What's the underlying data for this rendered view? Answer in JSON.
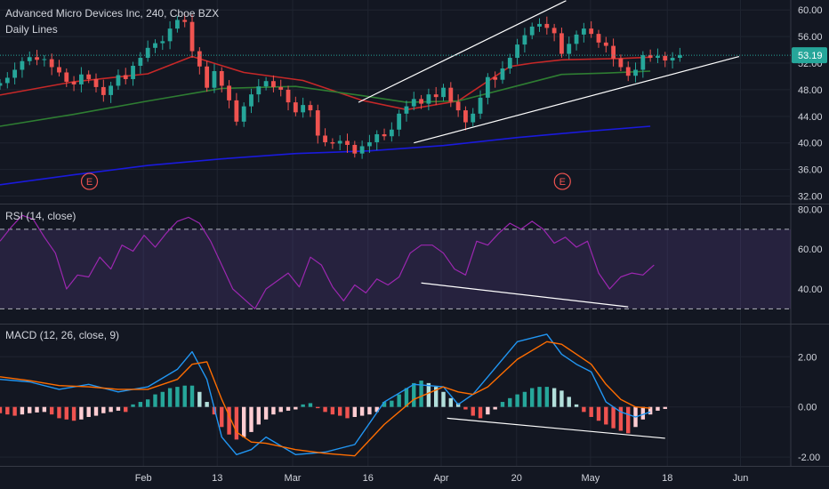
{
  "header": {
    "symbol_title": "Advanced Micro Devices Inc, 240, Cboe BZX",
    "ma_label": "Daily Lines"
  },
  "indicators": {
    "rsi_title": "RSI (14, close)",
    "macd_title": "MACD (12, 26, close, 9)"
  },
  "last_price": "53.19",
  "earnings_marker": "E",
  "colors": {
    "background": "#131722",
    "up": "#26a69a",
    "down": "#ef5350",
    "ma_red": "#c62828",
    "ma_green": "#2e7d32",
    "ma_blue": "#1a1adc",
    "rsi": "#9c27b0",
    "macd": "#2196f3",
    "signal": "#ff6d00",
    "trendline": "#ffffff",
    "price_label": "#26a69a"
  },
  "chart_data": [
    {
      "type": "candlestick",
      "title": "Advanced Micro Devices Inc, 240, Cboe BZX",
      "ylim": [
        31,
        61.5
      ],
      "yticks": [
        "32.00",
        "36.00",
        "40.00",
        "44.00",
        "48.00",
        "52.00",
        "56.00",
        "60.00"
      ],
      "ytick_values": [
        32,
        36,
        40,
        44,
        48,
        52,
        56,
        60
      ],
      "xticks": [
        "Feb",
        "13",
        "Mar",
        "16",
        "Apr",
        "20",
        "May",
        "18",
        "Jun"
      ],
      "xtick_positions": [
        19.4,
        29.4,
        39.6,
        49.8,
        59.7,
        69.9,
        79.9,
        90.3,
        100.2
      ],
      "x_range": [
        0,
        107
      ],
      "events": [
        {
          "label": "E",
          "x": 12.1,
          "y": 34.2
        },
        {
          "label": "E",
          "x": 76.1,
          "y": 34.2
        }
      ],
      "closes": [
        49.0,
        49.8,
        51.0,
        52.3,
        52.9,
        52.5,
        52.6,
        51.4,
        50.6,
        49.2,
        48.8,
        50.3,
        49.6,
        48.4,
        47.2,
        48.6,
        50.2,
        49.6,
        51.6,
        52.8,
        54.3,
        55.0,
        55.3,
        57.2,
        58.5,
        58.2,
        53.8,
        51.5,
        48.3,
        50.8,
        48.6,
        46.4,
        43.2,
        45.5,
        47.3,
        48.5,
        49.3,
        48.4,
        48.0,
        46.1,
        44.6,
        45.7,
        44.9,
        41.1,
        40.1,
        39.9,
        40.3,
        39.7,
        38.4,
        39.5,
        40.1,
        41.3,
        41.0,
        42.0,
        44.4,
        45.5,
        46.6,
        45.9,
        47.3,
        46.9,
        48.3,
        46.2,
        44.9,
        43.1,
        44.4,
        46.8,
        49.9,
        49.5,
        51.2,
        52.8,
        54.8,
        56.2,
        57.5,
        57.9,
        57.3,
        56.5,
        53.4,
        54.9,
        56.3,
        57.2,
        56.4,
        55.1,
        54.6,
        52.7,
        51.4,
        50.1,
        51.0,
        53.2,
        52.8,
        53.1,
        52.4,
        52.8,
        53.19
      ],
      "series": [
        {
          "name": "",
          "color": "#c62828",
          "x": [
            0,
            10,
            20,
            26,
            33,
            41,
            49,
            55,
            62,
            69,
            72,
            76,
            80,
            84,
            88
          ],
          "y": [
            47.2,
            49.2,
            50.4,
            53.0,
            50.6,
            49.4,
            46.4,
            45.0,
            46.3,
            51.5,
            52.0,
            52.5,
            52.6,
            52.7,
            52.9
          ]
        },
        {
          "name": "",
          "color": "#2e7d32",
          "x": [
            0,
            10,
            20,
            30,
            40,
            49,
            55,
            62,
            69,
            76,
            82,
            88
          ],
          "y": [
            42.5,
            44.3,
            46.3,
            48.2,
            48.5,
            47.1,
            46.1,
            46.3,
            48.3,
            50.3,
            50.5,
            50.8
          ]
        },
        {
          "name": "",
          "color": "#1a1adc",
          "x": [
            0,
            10,
            20,
            30,
            40,
            50,
            60,
            70,
            80,
            88
          ],
          "y": [
            33.7,
            35.2,
            36.6,
            37.6,
            38.4,
            38.8,
            39.6,
            40.8,
            41.8,
            42.5
          ]
        }
      ],
      "trendlines": [
        {
          "x": [
            48.5,
            76.6
          ],
          "y": [
            46.1,
            61.4
          ]
        },
        {
          "x": [
            56.0,
            100.0
          ],
          "y": [
            40.0,
            53.0
          ]
        }
      ]
    },
    {
      "type": "line",
      "title": "RSI (14, close)",
      "ylim": [
        23,
        82
      ],
      "yticks": [
        "40.00",
        "60.00",
        "80.00"
      ],
      "ytick_values": [
        40,
        60,
        80
      ],
      "levels": [
        70,
        30
      ],
      "series": [
        {
          "name": "",
          "color": "#9c27b0",
          "x": [
            0,
            1.5,
            3,
            4.5,
            6,
            7.5,
            9,
            10.5,
            12,
            13.5,
            15,
            16.5,
            18,
            19.5,
            21,
            22.5,
            24,
            25.5,
            27,
            28.5,
            30,
            31.5,
            33,
            34.5,
            36,
            37.5,
            39,
            40.5,
            42,
            43.5,
            45,
            46.5,
            48,
            49.5,
            51,
            52.5,
            54,
            55.5,
            57,
            58.5,
            60,
            61.5,
            63,
            64.5,
            66,
            67.5,
            69,
            70.5,
            72,
            73.5,
            75,
            76.5,
            78,
            79.5,
            81,
            82.5,
            84,
            85.5,
            87,
            88.5
          ],
          "y": [
            64,
            71,
            77,
            75,
            66,
            58,
            40,
            47,
            46,
            56,
            50,
            62,
            59,
            67,
            61,
            68,
            74,
            76,
            73,
            64,
            52,
            40,
            35,
            30,
            40,
            44,
            48,
            41,
            56,
            52,
            41,
            34,
            42,
            38,
            45,
            42,
            46,
            58,
            62,
            62,
            58,
            50,
            47,
            64,
            62,
            68,
            73,
            70,
            74,
            70,
            63,
            66,
            61,
            64,
            48,
            40,
            46,
            48,
            47,
            52
          ]
        }
      ],
      "trendlines": [
        {
          "x": [
            57.0,
            85.0
          ],
          "y": [
            43.0,
            31.0
          ]
        }
      ]
    },
    {
      "type": "bar+line",
      "title": "MACD (12, 26, close, 9)",
      "ylim": [
        -2.35,
        3.25
      ],
      "yticks": [
        "2.00",
        "0.00",
        "-2.00"
      ],
      "ytick_values": [
        2,
        0,
        -2
      ],
      "histogram": [
        -0.25,
        -0.3,
        -0.35,
        -0.3,
        -0.25,
        -0.22,
        -0.2,
        -0.3,
        -0.45,
        -0.5,
        -0.55,
        -0.5,
        -0.4,
        -0.35,
        -0.25,
        -0.2,
        -0.15,
        -0.2,
        0.1,
        0.2,
        0.3,
        0.5,
        0.6,
        0.75,
        0.8,
        0.85,
        0.85,
        0.6,
        0.2,
        -0.3,
        -0.8,
        -1.1,
        -1.3,
        -1.2,
        -1.0,
        -0.7,
        -0.5,
        -0.3,
        -0.2,
        -0.15,
        -0.1,
        0.1,
        0.15,
        -0.05,
        -0.2,
        -0.3,
        -0.35,
        -0.45,
        -0.4,
        -0.35,
        -0.3,
        -0.2,
        0.2,
        0.25,
        0.5,
        0.75,
        0.95,
        1.05,
        0.95,
        0.8,
        0.6,
        0.35,
        0.15,
        -0.1,
        -0.35,
        -0.45,
        -0.3,
        -0.1,
        0.2,
        0.35,
        0.5,
        0.6,
        0.75,
        0.8,
        0.8,
        0.75,
        0.65,
        0.4,
        0.1,
        -0.2,
        -0.4,
        -0.55,
        -0.7,
        -0.85,
        -0.95,
        -1.05,
        -0.8,
        -0.5,
        -0.3,
        -0.15,
        -0.08
      ],
      "series": [
        {
          "name": "",
          "color": "#2196f3",
          "x": [
            0,
            4,
            8,
            12,
            16,
            20,
            24,
            26,
            28,
            30,
            32,
            34,
            36,
            40,
            44,
            48,
            52,
            56,
            60,
            62,
            64,
            66,
            70,
            74,
            76,
            78,
            80,
            82,
            84,
            86,
            88
          ],
          "y": [
            1.1,
            1.0,
            0.7,
            0.9,
            0.6,
            0.8,
            1.5,
            2.2,
            1.1,
            -1.2,
            -1.9,
            -1.7,
            -1.2,
            -1.9,
            -1.8,
            -1.5,
            0.2,
            0.9,
            0.8,
            0.1,
            0.5,
            1.2,
            2.6,
            2.9,
            2.1,
            1.7,
            1.4,
            0.2,
            -0.2,
            -0.4,
            -0.2
          ]
        },
        {
          "name": "",
          "color": "#ff6d00",
          "x": [
            0,
            4,
            8,
            12,
            16,
            20,
            24,
            26,
            28,
            30,
            32,
            34,
            36,
            40,
            44,
            48,
            52,
            56,
            60,
            62,
            64,
            66,
            70,
            74,
            76,
            78,
            80,
            82,
            84,
            86,
            88
          ],
          "y": [
            1.2,
            1.05,
            0.85,
            0.8,
            0.7,
            0.7,
            1.1,
            1.7,
            1.8,
            0.3,
            -1.0,
            -1.4,
            -1.45,
            -1.7,
            -1.85,
            -1.95,
            -0.7,
            0.3,
            0.8,
            0.6,
            0.5,
            0.8,
            1.9,
            2.6,
            2.5,
            2.1,
            1.7,
            0.9,
            0.3,
            0.0,
            -0.05
          ]
        }
      ],
      "trendlines": [
        {
          "x": [
            60.5,
            90.0
          ],
          "y": [
            -0.45,
            -1.25
          ]
        }
      ]
    }
  ]
}
